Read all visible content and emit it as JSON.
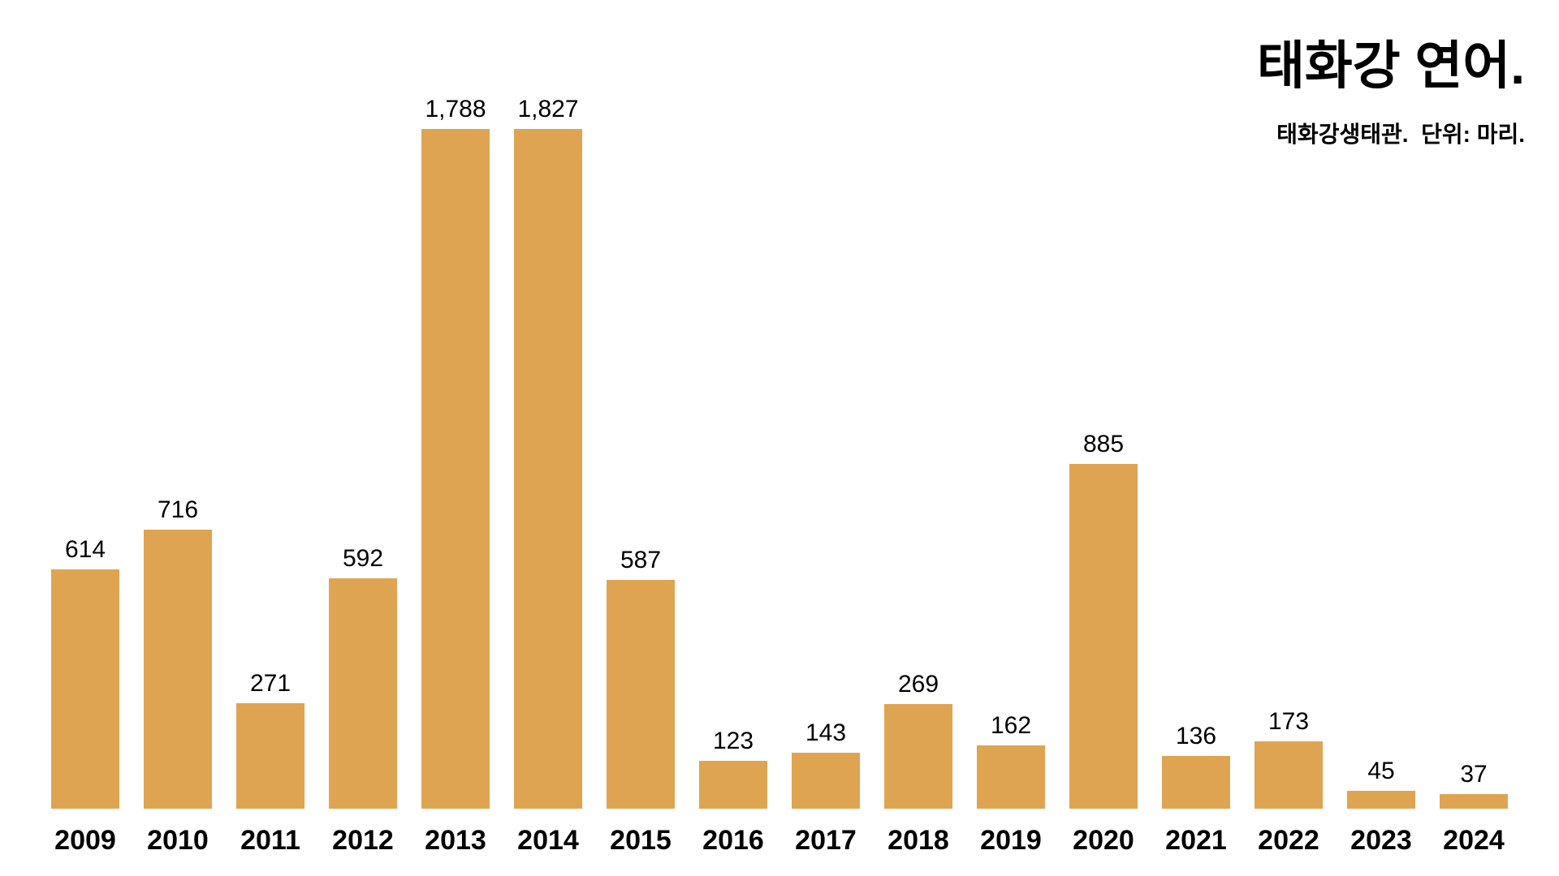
{
  "header": {
    "title": "태화강 연어.",
    "subtitle": "태화강생태관.  단위: 마리."
  },
  "chart_data": {
    "type": "bar",
    "title": "태화강 연어.",
    "source_note": "태화강생태관.",
    "unit_note": "단위: 마리.",
    "categories": [
      "2009",
      "2010",
      "2011",
      "2012",
      "2013",
      "2014",
      "2015",
      "2016",
      "2017",
      "2018",
      "2019",
      "2020",
      "2021",
      "2022",
      "2023",
      "2024"
    ],
    "values": [
      614,
      716,
      271,
      592,
      1788,
      1827,
      587,
      123,
      143,
      269,
      162,
      885,
      136,
      173,
      45,
      37
    ],
    "value_labels": [
      "614",
      "716",
      "271",
      "592",
      "1,788",
      "1,827",
      "587",
      "123",
      "143",
      "269",
      "162",
      "885",
      "136",
      "173",
      "45",
      "37"
    ],
    "bar_color": "#DEA452",
    "background_color": "#FFFFFF",
    "text_color": "#000000",
    "ylim": [
      0,
      1827
    ],
    "xlabel": "",
    "ylabel": "",
    "grid": false,
    "legend": false,
    "legend_position": "none"
  }
}
